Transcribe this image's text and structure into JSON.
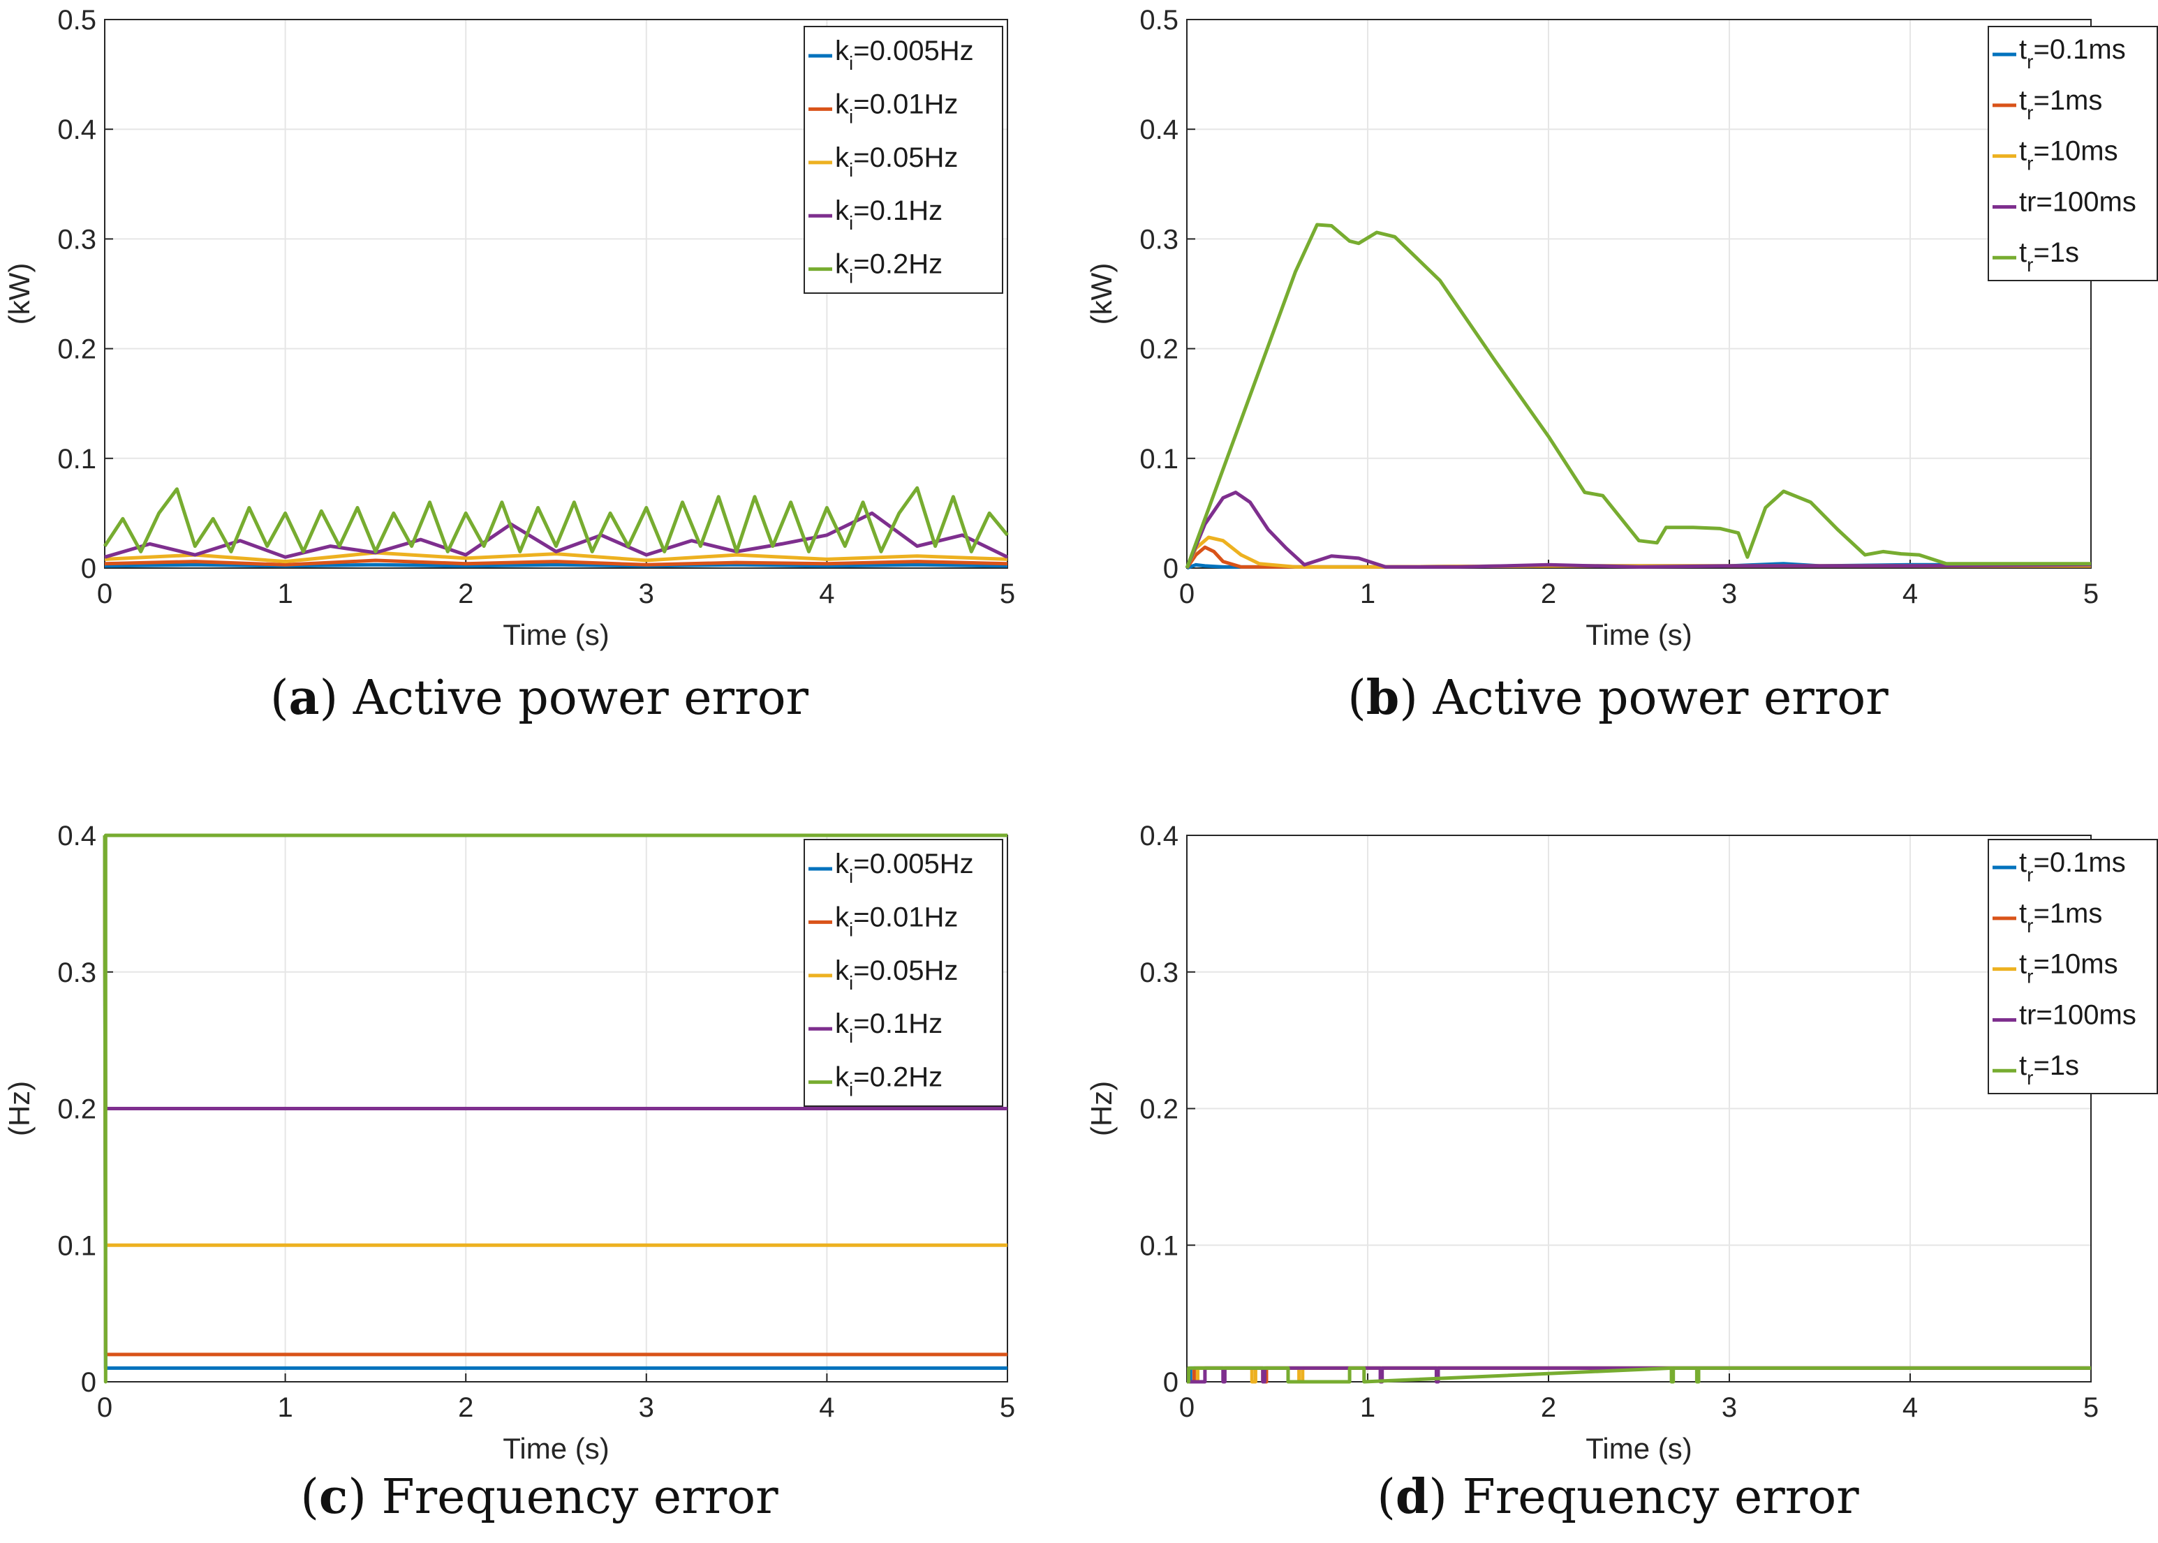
{
  "chart_data": [
    {
      "type": "line",
      "caption_letter": "a",
      "caption_text": "Active power error",
      "xlabel": "Time (s)",
      "ylabel": "(kW)",
      "xlim": [
        0,
        5
      ],
      "ylim": [
        0,
        0.5
      ],
      "xticks": [
        "0",
        "1",
        "2",
        "3",
        "4",
        "5"
      ],
      "yticks": [
        "0",
        "0.1",
        "0.2",
        "0.3",
        "0.4",
        "0.5"
      ],
      "legend_position": "top-right",
      "grid": true,
      "series": [
        {
          "name": "k_i=0.005Hz",
          "legend_main": "k",
          "legend_sub": "i",
          "legend_rest": "=0.005Hz",
          "color": "#0072BD",
          "x": [
            0,
            0.5,
            1,
            1.5,
            2,
            2.5,
            3,
            3.5,
            4,
            4.5,
            5
          ],
          "y": [
            0.002,
            0.003,
            0.002,
            0.003,
            0.002,
            0.003,
            0.002,
            0.003,
            0.002,
            0.003,
            0.002
          ]
        },
        {
          "name": "k_i=0.01Hz",
          "legend_main": "k",
          "legend_sub": "i",
          "legend_rest": "=0.01Hz",
          "color": "#D95319",
          "x": [
            0,
            0.5,
            1,
            1.5,
            2,
            2.5,
            3,
            3.5,
            4,
            4.5,
            5
          ],
          "y": [
            0.004,
            0.006,
            0.003,
            0.007,
            0.004,
            0.006,
            0.003,
            0.005,
            0.004,
            0.006,
            0.004
          ]
        },
        {
          "name": "k_i=0.05Hz",
          "legend_main": "k",
          "legend_sub": "i",
          "legend_rest": "=0.05Hz",
          "color": "#EDB120",
          "x": [
            0,
            0.5,
            1,
            1.5,
            2,
            2.5,
            3,
            3.5,
            4,
            4.5,
            5
          ],
          "y": [
            0.008,
            0.012,
            0.006,
            0.014,
            0.009,
            0.013,
            0.007,
            0.012,
            0.008,
            0.011,
            0.008
          ]
        },
        {
          "name": "k_i=0.1Hz",
          "legend_main": "k",
          "legend_sub": "i",
          "legend_rest": "=0.1Hz",
          "color": "#7E2F8E",
          "x": [
            0,
            0.25,
            0.5,
            0.75,
            1,
            1.25,
            1.5,
            1.75,
            2,
            2.25,
            2.5,
            2.75,
            3,
            3.25,
            3.5,
            3.75,
            4,
            4.25,
            4.5,
            4.75,
            5
          ],
          "y": [
            0.01,
            0.022,
            0.012,
            0.025,
            0.01,
            0.02,
            0.014,
            0.026,
            0.012,
            0.04,
            0.015,
            0.03,
            0.012,
            0.025,
            0.015,
            0.022,
            0.03,
            0.05,
            0.02,
            0.03,
            0.01
          ]
        },
        {
          "name": "k_i=0.2Hz",
          "legend_main": "k",
          "legend_sub": "i",
          "legend_rest": "=0.2Hz",
          "color": "#77AC30",
          "x": [
            0,
            0.1,
            0.2,
            0.3,
            0.4,
            0.5,
            0.6,
            0.7,
            0.8,
            0.9,
            1.0,
            1.1,
            1.2,
            1.3,
            1.4,
            1.5,
            1.6,
            1.7,
            1.8,
            1.9,
            2.0,
            2.1,
            2.2,
            2.3,
            2.4,
            2.5,
            2.6,
            2.7,
            2.8,
            2.9,
            3.0,
            3.1,
            3.2,
            3.3,
            3.4,
            3.5,
            3.6,
            3.7,
            3.8,
            3.9,
            4.0,
            4.1,
            4.2,
            4.3,
            4.4,
            4.5,
            4.6,
            4.7,
            4.8,
            4.9,
            5.0
          ],
          "y": [
            0.02,
            0.045,
            0.015,
            0.05,
            0.072,
            0.02,
            0.045,
            0.015,
            0.055,
            0.02,
            0.05,
            0.015,
            0.052,
            0.02,
            0.055,
            0.015,
            0.05,
            0.02,
            0.06,
            0.015,
            0.05,
            0.02,
            0.06,
            0.015,
            0.055,
            0.02,
            0.06,
            0.015,
            0.05,
            0.02,
            0.055,
            0.015,
            0.06,
            0.02,
            0.065,
            0.015,
            0.065,
            0.02,
            0.06,
            0.015,
            0.055,
            0.02,
            0.06,
            0.015,
            0.05,
            0.073,
            0.02,
            0.065,
            0.015,
            0.05,
            0.03
          ]
        }
      ]
    },
    {
      "type": "line",
      "caption_letter": "b",
      "caption_text": "Active power error",
      "xlabel": "Time (s)",
      "ylabel": "(kW)",
      "xlim": [
        0,
        5
      ],
      "ylim": [
        0,
        0.5
      ],
      "xticks": [
        "0",
        "1",
        "2",
        "3",
        "4",
        "5"
      ],
      "yticks": [
        "0",
        "0.1",
        "0.2",
        "0.3",
        "0.4",
        "0.5"
      ],
      "legend_position": "top-right",
      "grid": true,
      "series": [
        {
          "name": "t_r=0.1ms",
          "legend_main": "t",
          "legend_sub": "r",
          "legend_rest": "=0.1ms",
          "color": "#0072BD",
          "x": [
            0,
            0.05,
            0.1,
            0.2,
            0.5,
            1,
            2,
            3,
            3.3,
            3.5,
            4,
            5
          ],
          "y": [
            0,
            0.003,
            0.002,
            0.001,
            0.001,
            0.001,
            0.002,
            0.002,
            0.004,
            0.002,
            0.003,
            0.003
          ]
        },
        {
          "name": "t_r=1ms",
          "legend_main": "t",
          "legend_sub": "r",
          "legend_rest": "=1ms",
          "color": "#D95319",
          "x": [
            0,
            0.05,
            0.1,
            0.15,
            0.2,
            0.3,
            0.5,
            1,
            2,
            3,
            4,
            5
          ],
          "y": [
            0,
            0.012,
            0.019,
            0.015,
            0.006,
            0.001,
            0.001,
            0.001,
            0.002,
            0.002,
            0.002,
            0.002
          ]
        },
        {
          "name": "t_r=10ms",
          "legend_main": "t",
          "legend_sub": "r",
          "legend_rest": "=10ms",
          "color": "#EDB120",
          "x": [
            0,
            0.05,
            0.12,
            0.2,
            0.3,
            0.4,
            0.6,
            1,
            2,
            3,
            4,
            5
          ],
          "y": [
            0,
            0.018,
            0.028,
            0.025,
            0.012,
            0.004,
            0.001,
            0.001,
            0.002,
            0.002,
            0.002,
            0.002
          ]
        },
        {
          "name": "tr=100ms",
          "legend_main": "tr=100ms",
          "legend_sub": "",
          "legend_rest": "",
          "color": "#7E2F8E",
          "x": [
            0,
            0.1,
            0.2,
            0.27,
            0.35,
            0.45,
            0.55,
            0.65,
            0.8,
            0.95,
            1.1,
            1.5,
            2,
            2.5,
            3,
            4,
            5
          ],
          "y": [
            0,
            0.04,
            0.064,
            0.069,
            0.06,
            0.035,
            0.018,
            0.003,
            0.011,
            0.009,
            0.001,
            0.001,
            0.003,
            0.001,
            0.002,
            0.002,
            0.003
          ]
        },
        {
          "name": "t_r=1s",
          "legend_main": "t",
          "legend_sub": "r",
          "legend_rest": "=1s",
          "color": "#77AC30",
          "x": [
            0,
            0.2,
            0.4,
            0.6,
            0.72,
            0.8,
            0.9,
            0.95,
            1.05,
            1.15,
            1.4,
            1.7,
            2.0,
            2.2,
            2.3,
            2.5,
            2.6,
            2.65,
            2.8,
            2.95,
            3.05,
            3.1,
            3.2,
            3.3,
            3.45,
            3.6,
            3.75,
            3.85,
            3.95,
            4.05,
            4.2,
            5.0
          ],
          "y": [
            0,
            0.09,
            0.18,
            0.27,
            0.313,
            0.312,
            0.298,
            0.296,
            0.306,
            0.302,
            0.262,
            0.19,
            0.12,
            0.069,
            0.066,
            0.025,
            0.023,
            0.037,
            0.037,
            0.036,
            0.032,
            0.01,
            0.055,
            0.07,
            0.06,
            0.035,
            0.012,
            0.015,
            0.013,
            0.012,
            0.004,
            0.004
          ]
        }
      ]
    },
    {
      "type": "line",
      "caption_letter": "c",
      "caption_text": "Frequency error",
      "xlabel": "Time (s)",
      "ylabel": "(Hz)",
      "xlim": [
        0,
        5
      ],
      "ylim": [
        0,
        0.4
      ],
      "xticks": [
        "0",
        "1",
        "2",
        "3",
        "4",
        "5"
      ],
      "yticks": [
        "0",
        "0.1",
        "0.2",
        "0.3",
        "0.4"
      ],
      "legend_position": "top-right",
      "grid": true,
      "series": [
        {
          "name": "k_i=0.005Hz",
          "legend_main": "k",
          "legend_sub": "i",
          "legend_rest": "=0.005Hz",
          "color": "#0072BD",
          "x": [
            0,
            0.005,
            5
          ],
          "y": [
            0.4,
            0.01,
            0.01
          ]
        },
        {
          "name": "k_i=0.01Hz",
          "legend_main": "k",
          "legend_sub": "i",
          "legend_rest": "=0.01Hz",
          "color": "#D95319",
          "x": [
            0,
            0.005,
            5
          ],
          "y": [
            0.4,
            0.02,
            0.02
          ]
        },
        {
          "name": "k_i=0.05Hz",
          "legend_main": "k",
          "legend_sub": "i",
          "legend_rest": "=0.05Hz",
          "color": "#EDB120",
          "x": [
            0,
            0.005,
            5
          ],
          "y": [
            0.4,
            0.1,
            0.1
          ]
        },
        {
          "name": "k_i=0.1Hz",
          "legend_main": "k",
          "legend_sub": "i",
          "legend_rest": "=0.1Hz",
          "color": "#7E2F8E",
          "x": [
            0,
            0.005,
            5
          ],
          "y": [
            0.4,
            0.2,
            0.2
          ]
        },
        {
          "name": "k_i=0.2Hz",
          "legend_main": "k",
          "legend_sub": "i",
          "legend_rest": "=0.2Hz",
          "color": "#77AC30",
          "x": [
            0,
            0.005,
            0.005,
            5
          ],
          "y": [
            0.4,
            0,
            0.4,
            0.4
          ]
        }
      ]
    },
    {
      "type": "line",
      "caption_letter": "d",
      "caption_text": "Frequency error",
      "xlabel": "Time (s)",
      "ylabel": "(Hz)",
      "xlim": [
        0,
        5
      ],
      "ylim": [
        0,
        0.4
      ],
      "xticks": [
        "0",
        "1",
        "2",
        "3",
        "4",
        "5"
      ],
      "yticks": [
        "0",
        "0.1",
        "0.2",
        "0.3",
        "0.4"
      ],
      "legend_position": "top-right",
      "grid": true,
      "series": [
        {
          "name": "t_r=0.1ms",
          "legend_main": "t",
          "legend_sub": "r",
          "legend_rest": "=0.1ms",
          "color": "#0072BD",
          "x": [
            0,
            0.02,
            0.02,
            5
          ],
          "y": [
            0,
            0,
            0.01,
            0.01
          ]
        },
        {
          "name": "t_r=1ms",
          "legend_main": "t",
          "legend_sub": "r",
          "legend_rest": "=1ms",
          "color": "#D95319",
          "x": [
            0,
            0.04,
            0.04,
            0.42,
            0.42,
            0.44,
            0.44,
            5
          ],
          "y": [
            0,
            0,
            0.01,
            0.01,
            0,
            0,
            0.01,
            0.01
          ]
        },
        {
          "name": "t_r=10ms",
          "legend_main": "t",
          "legend_sub": "r",
          "legend_rest": "=10ms",
          "color": "#EDB120",
          "x": [
            0,
            0.06,
            0.06,
            0.36,
            0.36,
            0.38,
            0.38,
            0.62,
            0.62,
            0.64,
            0.64,
            5
          ],
          "y": [
            0,
            0,
            0.01,
            0.01,
            0,
            0,
            0.01,
            0.01,
            0,
            0,
            0.01,
            0.01
          ]
        },
        {
          "name": "tr=100ms",
          "legend_main": "tr=100ms",
          "legend_sub": "",
          "legend_rest": "",
          "color": "#7E2F8E",
          "x": [
            0,
            0.1,
            0.1,
            0.2,
            0.2,
            0.21,
            0.21,
            0.42,
            0.42,
            0.43,
            0.43,
            1.07,
            1.07,
            1.08,
            1.08,
            1.38,
            1.38,
            1.39,
            1.39,
            5
          ],
          "y": [
            0,
            0,
            0.01,
            0.01,
            0,
            0,
            0.01,
            0.01,
            0,
            0,
            0.01,
            0.01,
            0,
            0,
            0.01,
            0.01,
            0,
            0,
            0.01,
            0.01
          ]
        },
        {
          "name": "t_r=1s",
          "legend_main": "t",
          "legend_sub": "r",
          "legend_rest": "=1s",
          "color": "#77AC30",
          "x": [
            0,
            0.01,
            0.01,
            0.56,
            0.56,
            0.9,
            0.9,
            0.98,
            0.98,
            2.68,
            2.68,
            2.69,
            2.69,
            2.82,
            2.82,
            2.83,
            2.83,
            5
          ],
          "y": [
            0,
            0,
            0.01,
            0.01,
            0,
            0,
            0.01,
            0.01,
            0,
            0.01,
            0,
            0,
            0.01,
            0.01,
            0,
            0,
            0.01,
            0.01
          ]
        }
      ]
    }
  ]
}
